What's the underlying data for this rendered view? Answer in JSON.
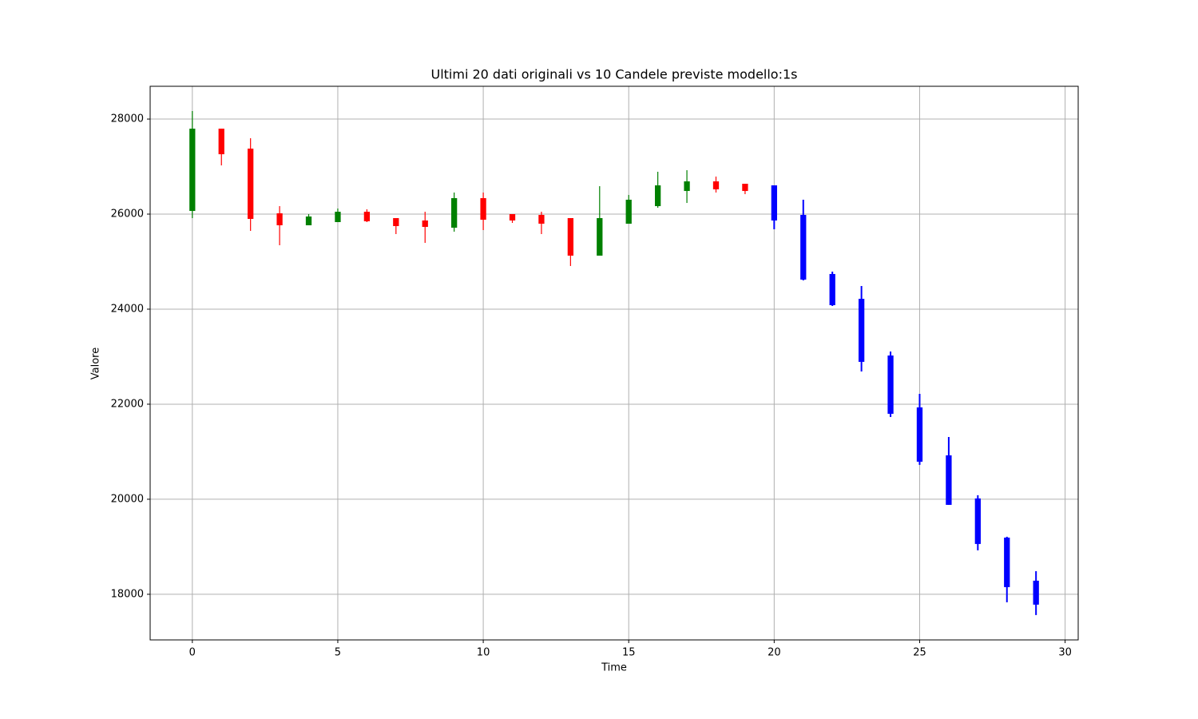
{
  "chart_data": {
    "type": "candlestick",
    "title": "Ultimi 20 dati originali vs 10 Candele previste modello:1s",
    "x_label": "Time",
    "y_label": "Valore",
    "xlim": [
      -1.45,
      30.45
    ],
    "ylim": [
      17040,
      28690
    ],
    "xticks": [
      0,
      5,
      10,
      15,
      20,
      25,
      30
    ],
    "yticks": [
      18000,
      20000,
      22000,
      24000,
      26000,
      28000
    ],
    "grid": true,
    "series": [
      {
        "up_color": "#008000",
        "down_color": "#ff0000",
        "x": [
          0,
          1,
          2,
          3,
          4,
          5,
          6,
          7,
          8,
          9,
          10,
          11,
          12,
          13,
          14,
          15,
          16,
          17,
          18,
          19
        ],
        "open": [
          26067,
          27798,
          27378,
          26017,
          25765,
          25832,
          26050,
          25916,
          25866,
          25714,
          26336,
          26000,
          25983,
          25916,
          25126,
          25798,
          26168,
          26487,
          26689,
          26639
        ],
        "high": [
          28168,
          27798,
          27597,
          26168,
          26000,
          26118,
          26101,
          25916,
          26050,
          26454,
          26454,
          26000,
          26050,
          25916,
          26588,
          26403,
          26891,
          26924,
          26790,
          26639
        ],
        "low": [
          25916,
          27025,
          25647,
          25345,
          25765,
          25832,
          25832,
          25580,
          25395,
          25630,
          25664,
          25815,
          25580,
          24908,
          25126,
          25798,
          26134,
          26235,
          26454,
          26420
        ],
        "close": [
          27798,
          27260,
          25899,
          25765,
          25950,
          26050,
          25849,
          25748,
          25731,
          26336,
          25882,
          25866,
          25798,
          25126,
          25916,
          26303,
          26605,
          26689,
          26521,
          26487
        ]
      },
      {
        "color": "#0000ff",
        "x": [
          20,
          21,
          22,
          23,
          24,
          25,
          26,
          27,
          28,
          29
        ],
        "open": [
          26605,
          25983,
          24740,
          24218,
          23025,
          21933,
          20924,
          20017,
          19193,
          18286
        ],
        "high": [
          26605,
          26303,
          24790,
          24487,
          23109,
          22218,
          21311,
          20084,
          19210,
          18487
        ],
        "low": [
          25681,
          24605,
          24067,
          22689,
          21731,
          20723,
          19882,
          18924,
          17832,
          17563
        ],
        "close": [
          25866,
          24622,
          24084,
          22891,
          21798,
          20790,
          19882,
          19059,
          18151,
          17782
        ]
      }
    ]
  }
}
